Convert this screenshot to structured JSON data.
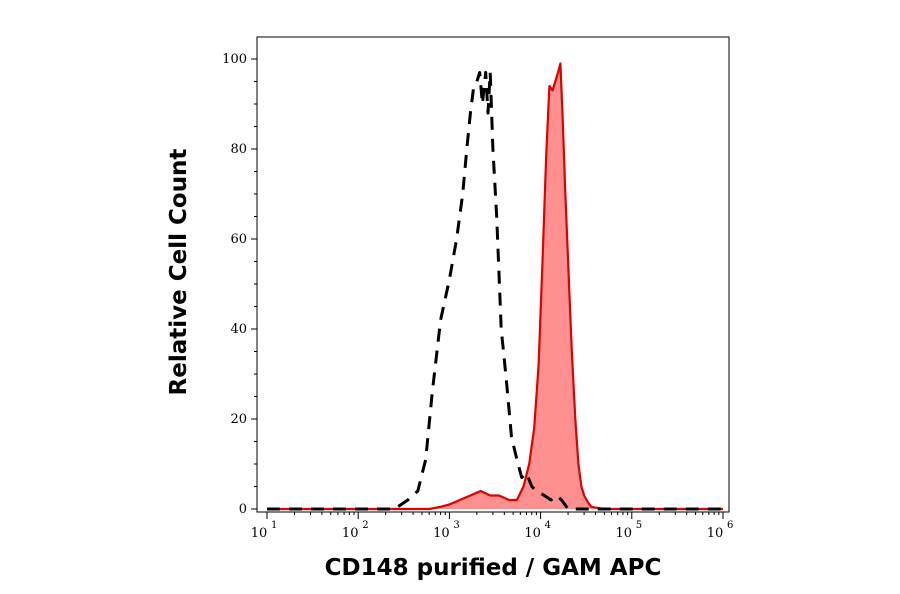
{
  "chart_data": {
    "type": "area",
    "title": "",
    "xlabel": "CD148 purified / GAM APC",
    "ylabel": "Relative Cell Count",
    "x_scale": "log10",
    "xlim": [
      10,
      1000000
    ],
    "ylim": [
      0,
      100
    ],
    "x_ticks": [
      {
        "base": "10",
        "exp": "1",
        "value": 10
      },
      {
        "base": "10",
        "exp": "2",
        "value": 100
      },
      {
        "base": "10",
        "exp": "3",
        "value": 1000
      },
      {
        "base": "10",
        "exp": "4",
        "value": 10000
      },
      {
        "base": "10",
        "exp": "5",
        "value": 100000
      },
      {
        "base": "10",
        "exp": "6",
        "value": 1000000
      }
    ],
    "y_ticks": [
      "0",
      "20",
      "40",
      "60",
      "80",
      "100"
    ],
    "grid": false,
    "legend": "none",
    "series": [
      {
        "style": "dashed",
        "color": "#000000",
        "fill": "none",
        "x": [
          10,
          250,
          350,
          450,
          550,
          650,
          800,
          1000,
          1200,
          1400,
          1550,
          1700,
          1850,
          2000,
          2150,
          2300,
          2500,
          2650,
          2800,
          3000,
          3300,
          3700,
          4200,
          4800,
          5500,
          6200,
          7000,
          8000,
          9000,
          11000,
          13000,
          15000,
          17000,
          20000,
          1000000
        ],
        "y": [
          0,
          0,
          2,
          4,
          11,
          26,
          42,
          51,
          60,
          70,
          80,
          88,
          94,
          95,
          97,
          90,
          97,
          88,
          97,
          80,
          65,
          40,
          29,
          16,
          11,
          7,
          8,
          5,
          4,
          3,
          2,
          3,
          2,
          0,
          0
        ]
      },
      {
        "style": "solid",
        "color": "#e00000",
        "fill": "#ff9090",
        "x": [
          10,
          600,
          800,
          1000,
          1300,
          1700,
          2200,
          2800,
          3500,
          4500,
          5500,
          6500,
          7500,
          8500,
          9500,
          10500,
          11500,
          12500,
          13500,
          14500,
          15500,
          16500,
          17500,
          18500,
          20000,
          22000,
          24000,
          26000,
          28000,
          30000,
          33000,
          36000,
          40000,
          50000,
          1000000
        ],
        "y": [
          0,
          0,
          0.5,
          1,
          2,
          3,
          4,
          3,
          3,
          2,
          2,
          5,
          10,
          18,
          32,
          55,
          78,
          94,
          93,
          95,
          97,
          99,
          86,
          72,
          55,
          35,
          20,
          10,
          5,
          3,
          1.5,
          0.5,
          0.3,
          0,
          0
        ]
      }
    ]
  }
}
